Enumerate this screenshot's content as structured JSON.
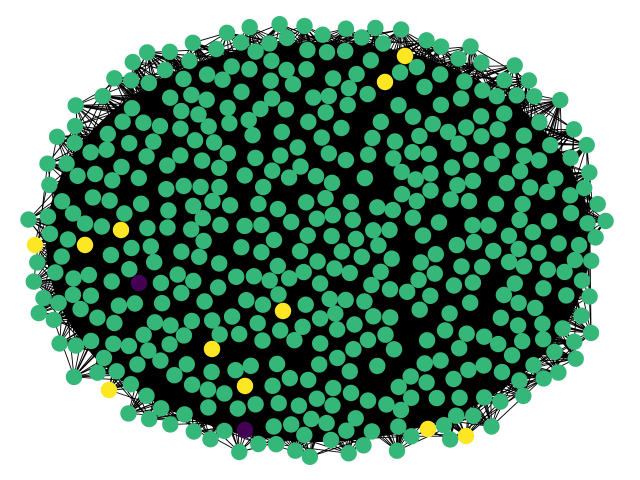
{
  "figure": {
    "background": "#ffffff"
  },
  "graph": {
    "edge_color": "#000000",
    "node_categories": [
      {
        "id": "majority",
        "color": "#35b779",
        "count": 468
      },
      {
        "id": "minority-high",
        "color": "#fde725",
        "count": 14
      },
      {
        "id": "minority-low",
        "color": "#440154",
        "count": 2
      }
    ],
    "highlighted_nodes": {
      "yellow": 14,
      "purple": 2
    }
  }
}
